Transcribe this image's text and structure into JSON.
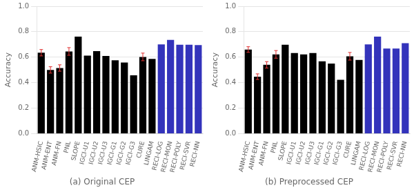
{
  "chart_data": [
    {
      "type": "bar",
      "title": "(a) Original CEP",
      "ylabel": "Accuracy",
      "categories": [
        "ANM-HSIC",
        "ANM-ENT",
        "ANM-FN",
        "PNL",
        "SLOPE",
        "IGCI-U1",
        "IGCI-U2",
        "IGCI-U3",
        "IGCI-G1",
        "IGCI-G2",
        "IGCI-G3",
        "CURE",
        "LINGAM",
        "RECI-LOG",
        "RECI-MON",
        "RECI-POLY",
        "RECI-SVR",
        "RECI-NN"
      ],
      "values": [
        0.635,
        0.5,
        0.515,
        0.645,
        0.762,
        0.612,
        0.648,
        0.61,
        0.575,
        0.558,
        0.458,
        0.602,
        0.586,
        0.7,
        0.735,
        0.698,
        0.698,
        0.695
      ],
      "errors": [
        0.025,
        0.025,
        0.025,
        0.03,
        0.0,
        0.0,
        0.0,
        0.0,
        0.0,
        0.0,
        0.0,
        0.03,
        0.0,
        0.0,
        0.0,
        0.0,
        0.0,
        0.0
      ],
      "colors": [
        "#000000",
        "#000000",
        "#000000",
        "#000000",
        "#000000",
        "#000000",
        "#000000",
        "#000000",
        "#000000",
        "#000000",
        "#000000",
        "#000000",
        "#000000",
        "#3333bb",
        "#3333bb",
        "#3333bb",
        "#3333bb",
        "#3333bb"
      ],
      "ylim": [
        0,
        1
      ],
      "yticks": [
        {
          "value": 0,
          "label": "0.0"
        },
        0.2,
        0.4,
        0.6,
        0.8,
        {
          "value": 1.0,
          "label": "1.0"
        }
      ],
      "grid": true
    },
    {
      "type": "bar",
      "title": "(b) Preprocessed CEP",
      "ylabel": "Accuracy",
      "categories": [
        "ANM-HSIC",
        "ANM-ENT",
        "ANM-FN",
        "PNL",
        "SLOPE",
        "IGCI-U1",
        "IGCI-U2",
        "IGCI-U3",
        "IGCI-G1",
        "IGCI-G2",
        "IGCI-G3",
        "CURE",
        "LINGAM",
        "RECI-LOG",
        "RECI-MON",
        "RECI-POLY",
        "RECI-SVR",
        "RECI-NN"
      ],
      "values": [
        0.66,
        0.447,
        0.54,
        0.622,
        0.698,
        0.633,
        0.622,
        0.633,
        0.567,
        0.55,
        0.422,
        0.607,
        0.578,
        0.7,
        0.762,
        0.668,
        0.668,
        0.71
      ],
      "errors": [
        0.022,
        0.022,
        0.025,
        0.03,
        0.0,
        0.0,
        0.0,
        0.0,
        0.0,
        0.0,
        0.0,
        0.03,
        0.0,
        0.0,
        0.0,
        0.0,
        0.0,
        0.0
      ],
      "colors": [
        "#000000",
        "#000000",
        "#000000",
        "#000000",
        "#000000",
        "#000000",
        "#000000",
        "#000000",
        "#000000",
        "#000000",
        "#000000",
        "#000000",
        "#000000",
        "#3333bb",
        "#3333bb",
        "#3333bb",
        "#3333bb",
        "#3333bb"
      ],
      "ylim": [
        0,
        1
      ],
      "yticks": [
        {
          "value": 0,
          "label": "0.0"
        },
        0.2,
        0.4,
        0.6,
        0.8,
        {
          "value": 1.0,
          "label": "1.0"
        }
      ],
      "grid": true
    }
  ]
}
